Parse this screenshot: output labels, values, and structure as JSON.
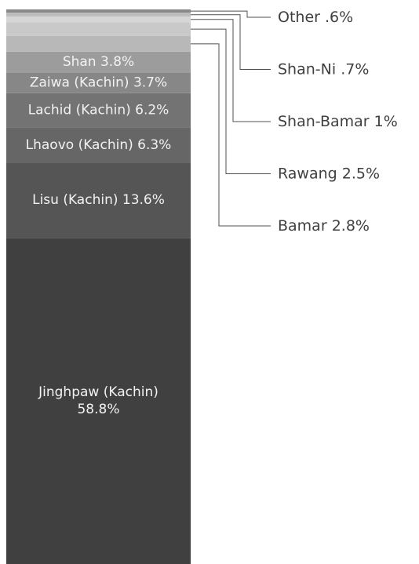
{
  "chart_data": {
    "type": "stacked-bar",
    "categories": [
      "Jinghpaw (Kachin)",
      "Lisu (Kachin)",
      "Lhaovo (Kachin)",
      "Lachid (Kachin)",
      "Zaiwa (Kachin)",
      "Shan",
      "Bamar",
      "Rawang",
      "Shan-Bamar",
      "Shan-Ni",
      "Other"
    ],
    "values": [
      58.8,
      13.6,
      6.3,
      6.2,
      3.7,
      3.8,
      2.8,
      2.5,
      1,
      0.7,
      0.6
    ],
    "value_labels": [
      "58.8%",
      "13.6%",
      "6.3%",
      "6.2%",
      "3.7%",
      "3.8%",
      "2.8%",
      "2.5%",
      "1%",
      ".7%",
      ".6%"
    ],
    "colors": [
      "#404040",
      "#555555",
      "#666666",
      "#737373",
      "#878787",
      "#9c9c9c",
      "#b8b8b8",
      "#c9c9c9",
      "#d6d6d6",
      "#bdbdbd",
      "#8a8a8a"
    ],
    "ylim": [
      0,
      100
    ]
  }
}
